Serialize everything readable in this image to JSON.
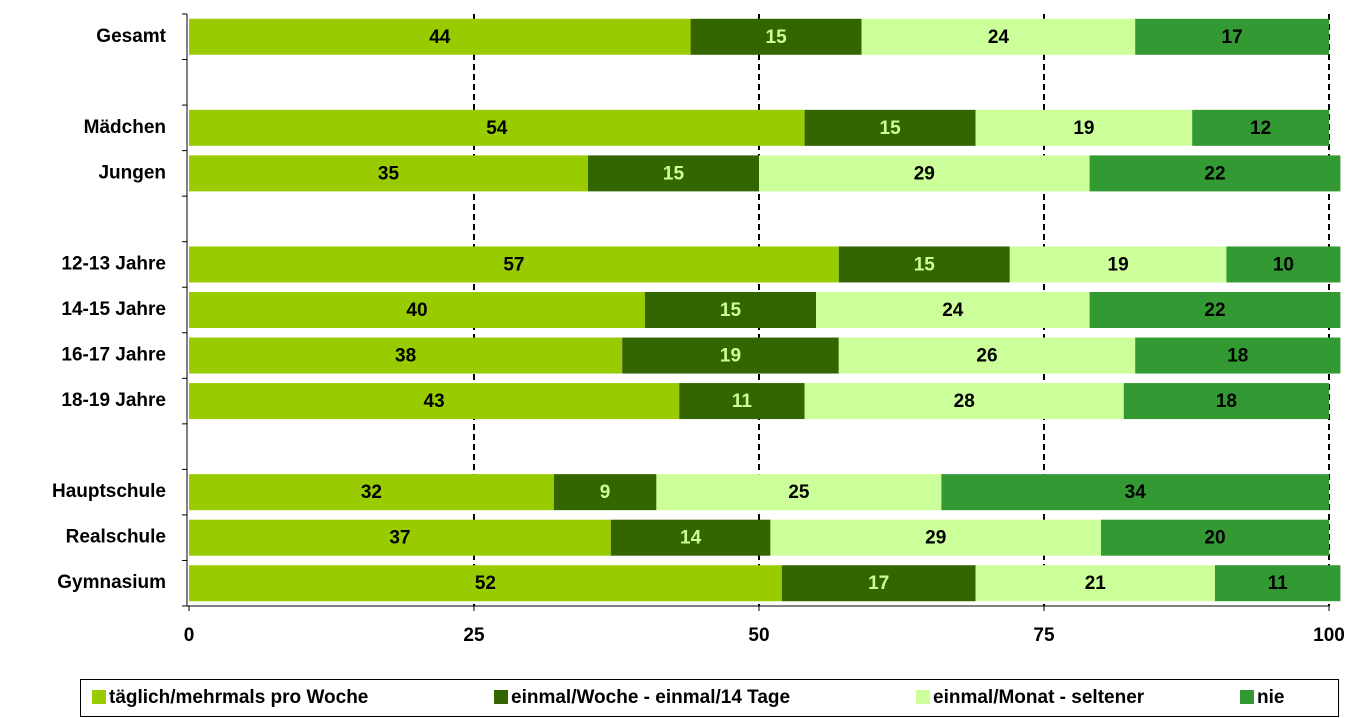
{
  "chart_data": {
    "type": "stacked-bar-horizontal",
    "categories": [
      "Gesamt",
      null,
      "Mädchen",
      "Jungen",
      null,
      "12-13 Jahre",
      "14-15 Jahre",
      "16-17 Jahre",
      "18-19 Jahre",
      null,
      "Hauptschule",
      "Realschule",
      "Gymnasium"
    ],
    "series": [
      {
        "name": "täglich/mehrmals pro Woche",
        "color": "#99cc00",
        "label_color": "#000000",
        "values": [
          44,
          null,
          54,
          35,
          null,
          57,
          40,
          38,
          43,
          null,
          32,
          37,
          52
        ]
      },
      {
        "name": "einmal/Woche - einmal/14 Tage",
        "color": "#336600",
        "label_color": "#ccff99",
        "values": [
          15,
          null,
          15,
          15,
          null,
          15,
          15,
          19,
          11,
          null,
          9,
          14,
          17
        ]
      },
      {
        "name": "einmal/Monat - seltener",
        "color": "#ccff99",
        "label_color": "#000000",
        "values": [
          24,
          null,
          19,
          29,
          null,
          19,
          24,
          26,
          28,
          null,
          25,
          29,
          21
        ]
      },
      {
        "name": "nie",
        "color": "#339933",
        "label_color": "#000000",
        "values": [
          17,
          null,
          12,
          22,
          null,
          10,
          22,
          18,
          18,
          null,
          34,
          20,
          11
        ]
      }
    ],
    "xlim": [
      0,
      100
    ],
    "xticks": [
      0,
      25,
      50,
      75,
      100
    ],
    "grid": true,
    "legend": "bottom"
  }
}
